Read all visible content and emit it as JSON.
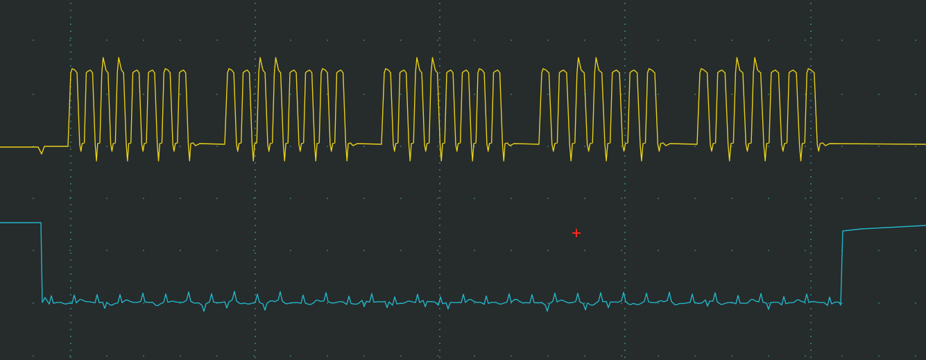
{
  "screen": {
    "background_color": "#262b2c",
    "grid_dot_color": "#3c8a86",
    "grid": {
      "divisions_x": 10,
      "divisions_y": 8
    }
  },
  "channels": [
    {
      "id": "ch1",
      "color": "#e8d21a",
      "bursts": [
        {
          "start_division": 0.72,
          "pulses": 8
        },
        {
          "start_division": 2.42,
          "pulses": 8
        },
        {
          "start_division": 4.12,
          "pulses": 8
        },
        {
          "start_division": 5.84,
          "pulses": 7
        },
        {
          "start_division": 7.55,
          "pulses": 7
        }
      ]
    },
    {
      "id": "ch2",
      "color": "#23b6c8",
      "low_start_division": 0.44,
      "low_end_division": 9.08
    }
  ],
  "cursor": {
    "color": "#ff2a1a",
    "position_division": [
      6.23,
      4.46
    ],
    "icon": "crosshair-cursor-icon"
  }
}
